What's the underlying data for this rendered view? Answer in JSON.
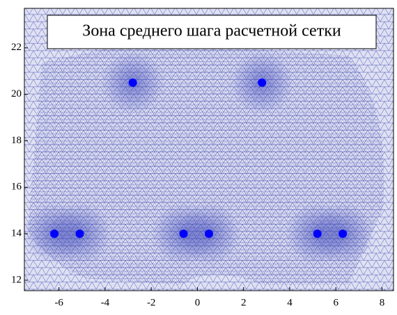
{
  "chart_data": {
    "type": "scatter",
    "title": "Зона среднего шага расчетной сетки",
    "x": [
      -6.2,
      -5.1,
      -2.8,
      -0.6,
      0.5,
      2.8,
      5.2,
      6.3
    ],
    "y": [
      14,
      14,
      20.5,
      14,
      14,
      20.5,
      14,
      14
    ],
    "color": "#0000ff",
    "xlim": [
      -7.5,
      8.5
    ],
    "xticks": [
      -6,
      -4,
      -2,
      0,
      2,
      4,
      6,
      8
    ],
    "ylim": [
      11.55,
      23.7
    ],
    "yticks": [
      12,
      14,
      16,
      18,
      20,
      22
    ]
  }
}
